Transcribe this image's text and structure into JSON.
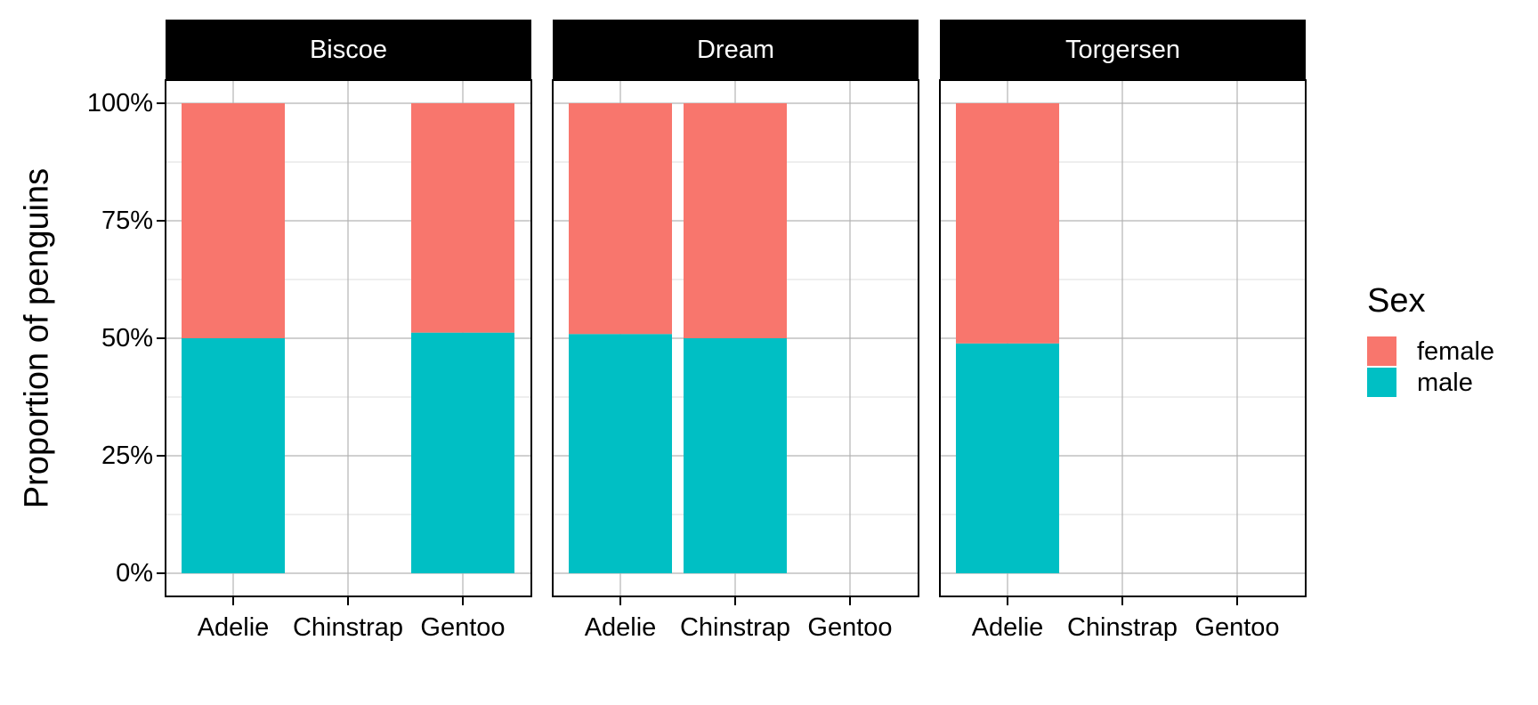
{
  "chart_data": {
    "type": "bar",
    "stacked": true,
    "facets": [
      "Biscoe",
      "Dream",
      "Torgersen"
    ],
    "categories": [
      "Adelie",
      "Chinstrap",
      "Gentoo"
    ],
    "ylabel": "Proportion of penguins",
    "xlabel": "",
    "ylim": [
      0,
      1
    ],
    "y_ticks": [
      0,
      0.25,
      0.5,
      0.75,
      1
    ],
    "y_tick_labels": [
      "0%",
      "25%",
      "50%",
      "75%",
      "100%"
    ],
    "grid": true,
    "legend": {
      "title": "Sex",
      "placement": "right",
      "entries": [
        {
          "name": "female",
          "color": "#F8766D"
        },
        {
          "name": "male",
          "color": "#00BFC4"
        }
      ]
    },
    "panels": [
      {
        "facet": "Biscoe",
        "bars": [
          {
            "category": "Adelie",
            "male": 0.5,
            "female": 0.5
          },
          {
            "category": "Gentoo",
            "male": 0.512,
            "female": 0.488
          }
        ]
      },
      {
        "facet": "Dream",
        "bars": [
          {
            "category": "Adelie",
            "male": 0.509,
            "female": 0.491
          },
          {
            "category": "Chinstrap",
            "male": 0.5,
            "female": 0.5
          }
        ]
      },
      {
        "facet": "Torgersen",
        "bars": [
          {
            "category": "Adelie",
            "male": 0.489,
            "female": 0.511
          }
        ]
      }
    ]
  }
}
